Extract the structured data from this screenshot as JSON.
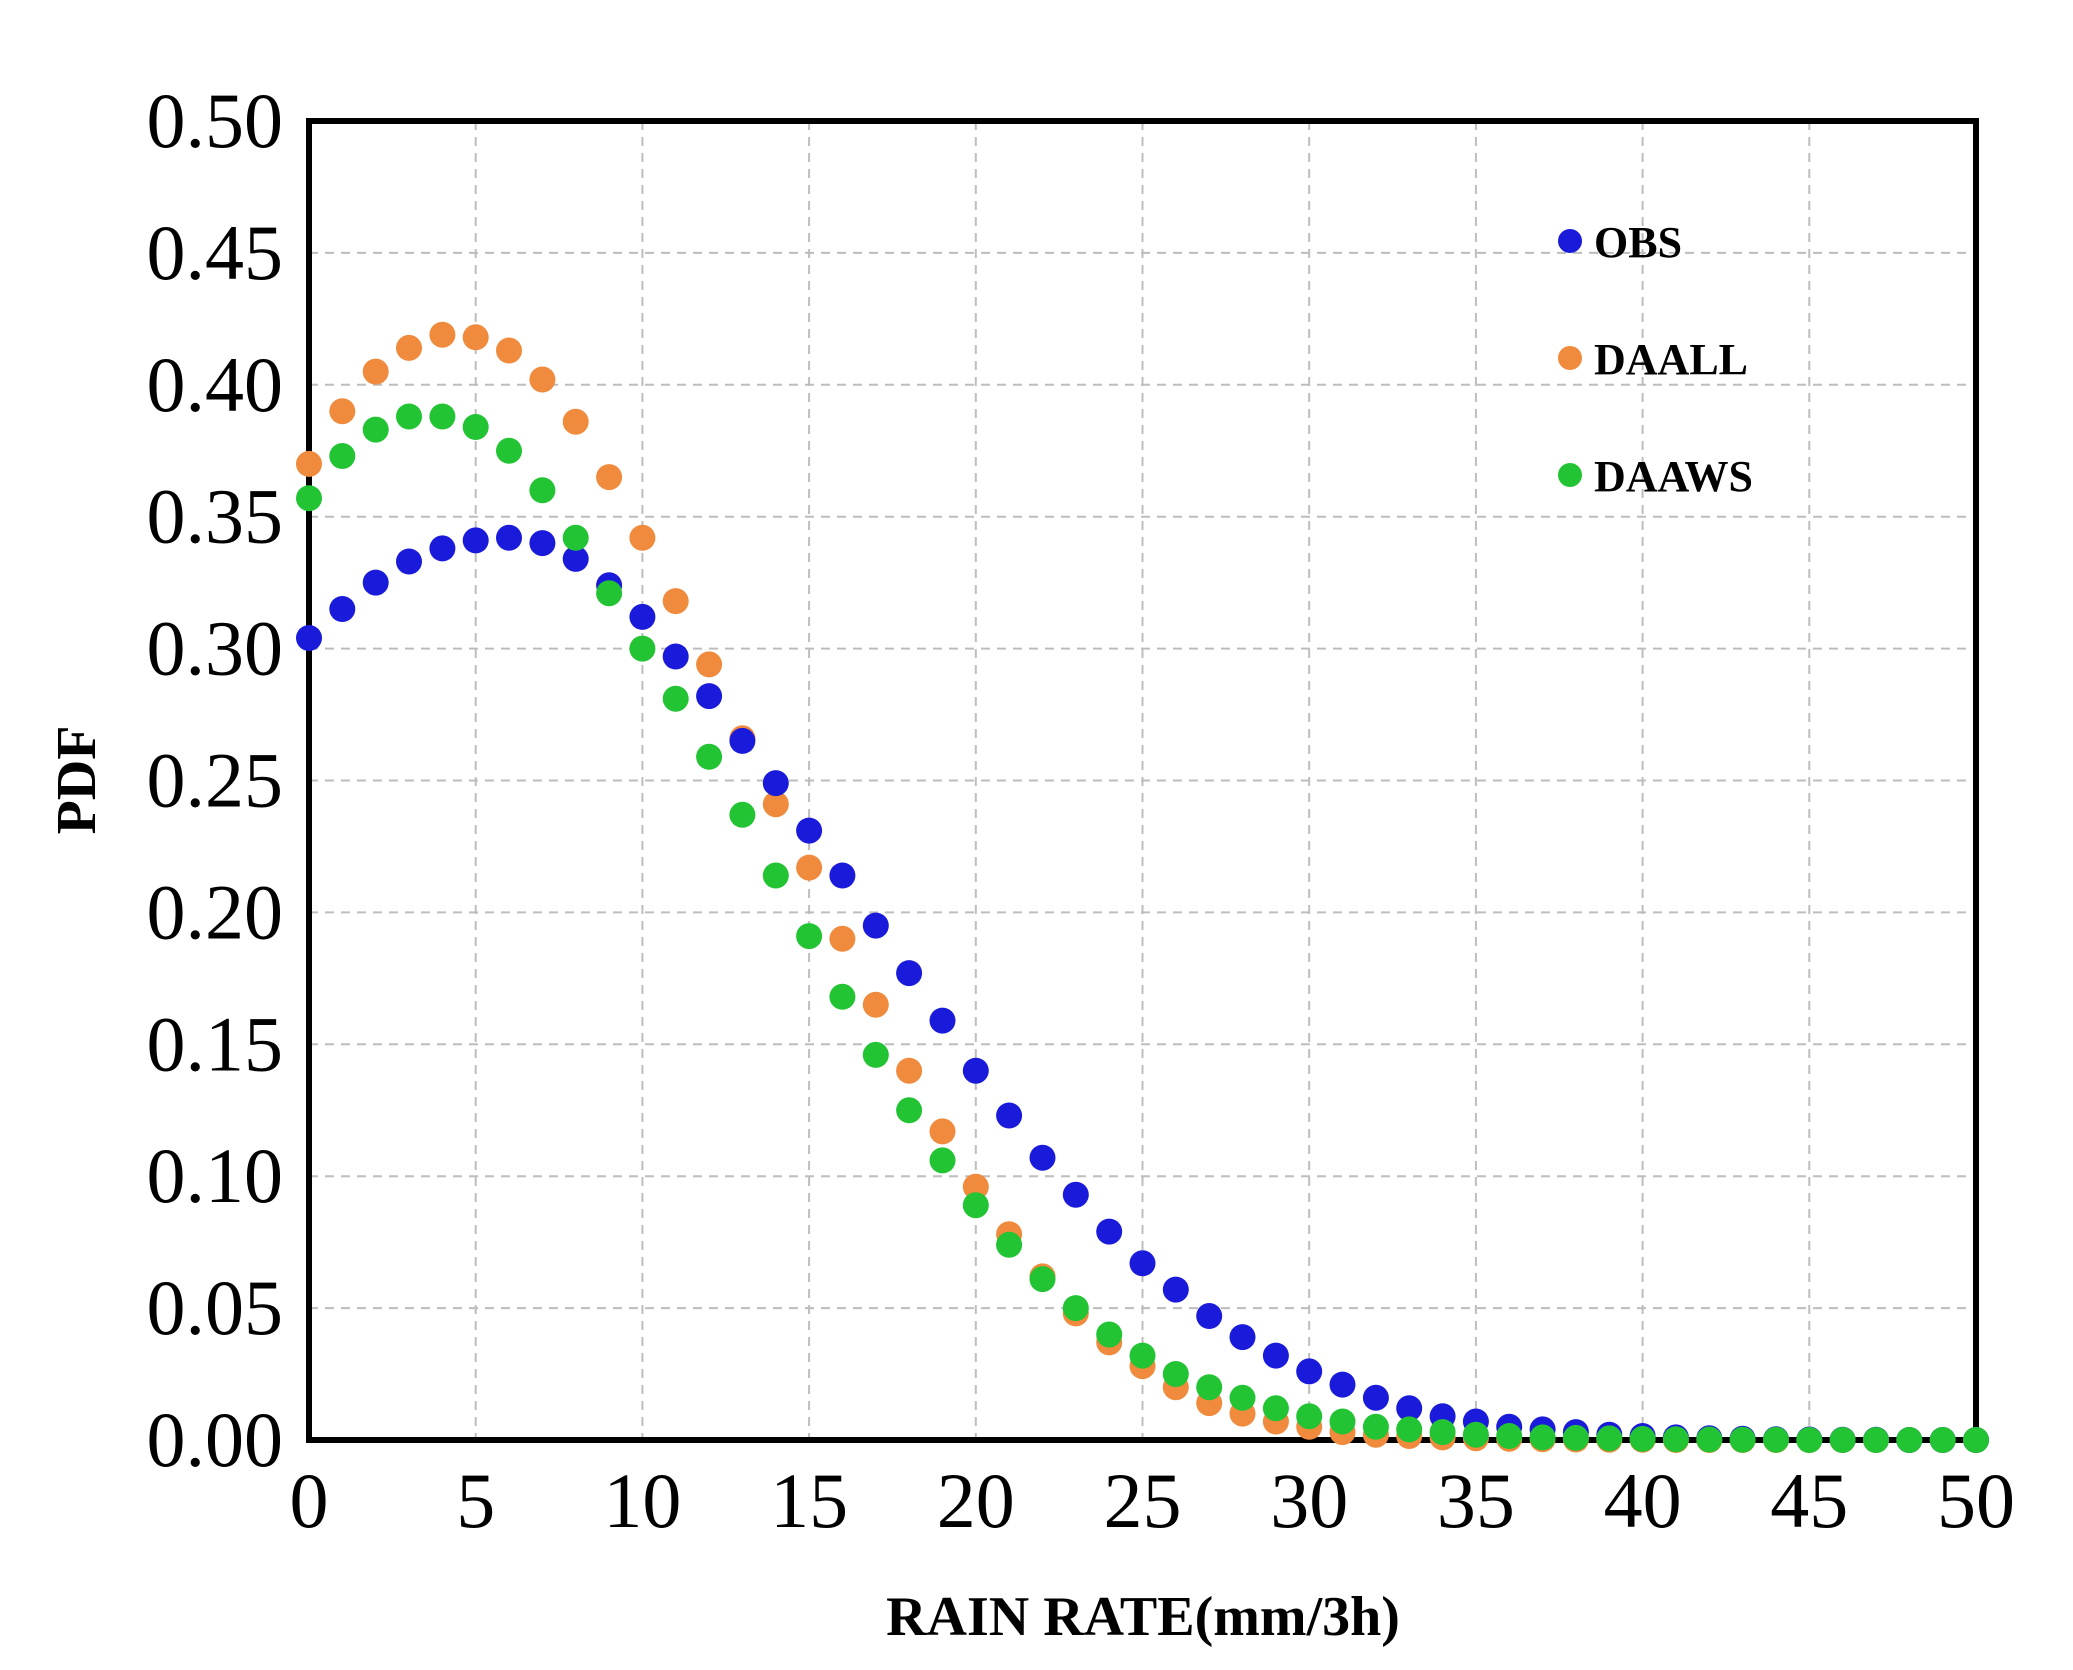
{
  "chart_data": {
    "type": "scatter",
    "title": "",
    "xlabel": "RAIN RATE(mm/3h)",
    "ylabel": "PDF",
    "xlim": [
      0,
      50
    ],
    "ylim": [
      0,
      0.5
    ],
    "grid": true,
    "legend_position": "top-right",
    "xticks": [
      "0",
      "5",
      "10",
      "15",
      "20",
      "25",
      "30",
      "35",
      "40",
      "45",
      "50"
    ],
    "yticks": [
      "0.00",
      "0.05",
      "0.10",
      "0.15",
      "0.20",
      "0.25",
      "0.30",
      "0.35",
      "0.40",
      "0.45",
      "0.50"
    ],
    "series": [
      {
        "name": "OBS",
        "color": "#1a1adb",
        "x": [
          0,
          1,
          2,
          3,
          4,
          5,
          6,
          7,
          8,
          9,
          10,
          11,
          12,
          13,
          14,
          15,
          16,
          17,
          18,
          19,
          20,
          21,
          22,
          23,
          24,
          25,
          26,
          27,
          28,
          29,
          30,
          31,
          32,
          33,
          34,
          35,
          36,
          37,
          38,
          39,
          40,
          41,
          42,
          43,
          44,
          45,
          46,
          47,
          48,
          49,
          50
        ],
        "values": [
          0.304,
          0.315,
          0.325,
          0.333,
          0.338,
          0.341,
          0.342,
          0.34,
          0.334,
          0.324,
          0.312,
          0.297,
          0.282,
          0.265,
          0.249,
          0.231,
          0.214,
          0.195,
          0.177,
          0.159,
          0.14,
          0.123,
          0.107,
          0.093,
          0.079,
          0.067,
          0.057,
          0.047,
          0.039,
          0.032,
          0.026,
          0.021,
          0.016,
          0.012,
          0.009,
          0.007,
          0.005,
          0.004,
          0.003,
          0.002,
          0.0015,
          0.001,
          0.0007,
          0.0005,
          0.0003,
          0.0002,
          0.0001,
          0.0001,
          0.0,
          0.0,
          0.0
        ]
      },
      {
        "name": "DAALL",
        "color": "#f08a3c",
        "x": [
          0,
          1,
          2,
          3,
          4,
          5,
          6,
          7,
          8,
          9,
          10,
          11,
          12,
          13,
          14,
          15,
          16,
          17,
          18,
          19,
          20,
          21,
          22,
          23,
          24,
          25,
          26,
          27,
          28,
          29,
          30,
          31,
          32,
          33,
          34,
          35,
          36,
          37,
          38,
          39,
          40,
          41,
          42,
          43,
          44,
          45,
          46,
          47,
          48,
          49,
          50
        ],
        "values": [
          0.37,
          0.39,
          0.405,
          0.414,
          0.419,
          0.418,
          0.413,
          0.402,
          0.386,
          0.365,
          0.342,
          0.318,
          0.294,
          0.266,
          0.241,
          0.217,
          0.19,
          0.165,
          0.14,
          0.117,
          0.096,
          0.078,
          0.062,
          0.048,
          0.037,
          0.028,
          0.02,
          0.014,
          0.01,
          0.007,
          0.005,
          0.003,
          0.002,
          0.0015,
          0.001,
          0.0007,
          0.0005,
          0.0003,
          0.0002,
          0.0001,
          0.0001,
          0.0,
          0.0,
          0.0,
          0.0,
          0.0,
          0.0,
          0.0,
          0.0,
          0.0,
          0.0
        ]
      },
      {
        "name": "DAAWS",
        "color": "#22c434",
        "x": [
          0,
          1,
          2,
          3,
          4,
          5,
          6,
          7,
          8,
          9,
          10,
          11,
          12,
          13,
          14,
          15,
          16,
          17,
          18,
          19,
          20,
          21,
          22,
          23,
          24,
          25,
          26,
          27,
          28,
          29,
          30,
          31,
          32,
          33,
          34,
          35,
          36,
          37,
          38,
          39,
          40,
          41,
          42,
          43,
          44,
          45,
          46,
          47,
          48,
          49,
          50
        ],
        "values": [
          0.357,
          0.373,
          0.383,
          0.388,
          0.388,
          0.384,
          0.375,
          0.36,
          0.342,
          0.321,
          0.3,
          0.281,
          0.259,
          0.237,
          0.214,
          0.191,
          0.168,
          0.146,
          0.125,
          0.106,
          0.089,
          0.074,
          0.061,
          0.05,
          0.04,
          0.032,
          0.025,
          0.02,
          0.016,
          0.012,
          0.009,
          0.007,
          0.005,
          0.004,
          0.003,
          0.002,
          0.0015,
          0.001,
          0.0008,
          0.0006,
          0.0004,
          0.0003,
          0.0002,
          0.0001,
          0.0001,
          0.0,
          0.0,
          0.0,
          0.0,
          0.0,
          0.0
        ]
      }
    ]
  }
}
